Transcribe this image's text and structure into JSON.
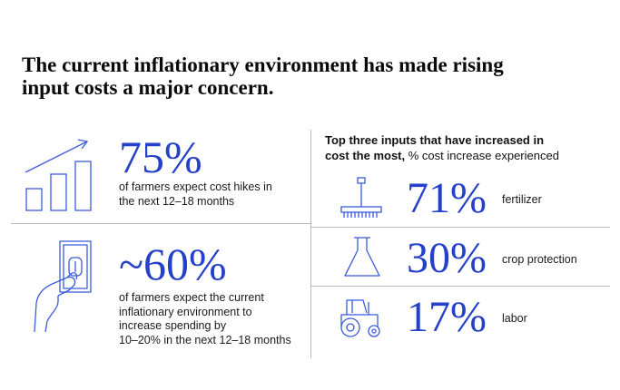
{
  "headline": {
    "line1": "The current inflationary environment has made rising",
    "line2": "input costs a major concern."
  },
  "left": {
    "stat1": {
      "value": "75%",
      "desc_line1": "of farmers expect cost hikes in",
      "desc_line2": "the next 12–18 months",
      "icon": "rising-bar-chart-icon"
    },
    "stat2": {
      "value": "~60%",
      "desc_line1": "of farmers expect the current",
      "desc_line2": "inflationary environment to",
      "desc_line3": "increase spending by",
      "desc_line4": "10–20% in the next 12–18 months",
      "icon": "hand-holding-money-icon"
    }
  },
  "right": {
    "title_bold_1": "Top three inputs that have increased in",
    "title_bold_2": "cost the most,",
    "title_regular": " % cost increase experienced",
    "items": [
      {
        "value": "71%",
        "label": "fertilizer",
        "icon": "fertilizer-spreader-icon"
      },
      {
        "value": "30%",
        "label": "crop protection",
        "icon": "flask-icon"
      },
      {
        "value": "17%",
        "label": "labor",
        "icon": "tractor-icon"
      }
    ]
  },
  "colors": {
    "accent": "#2540c9",
    "icon_stroke": "#3b5bdb",
    "divider": "#b9b9b9"
  }
}
